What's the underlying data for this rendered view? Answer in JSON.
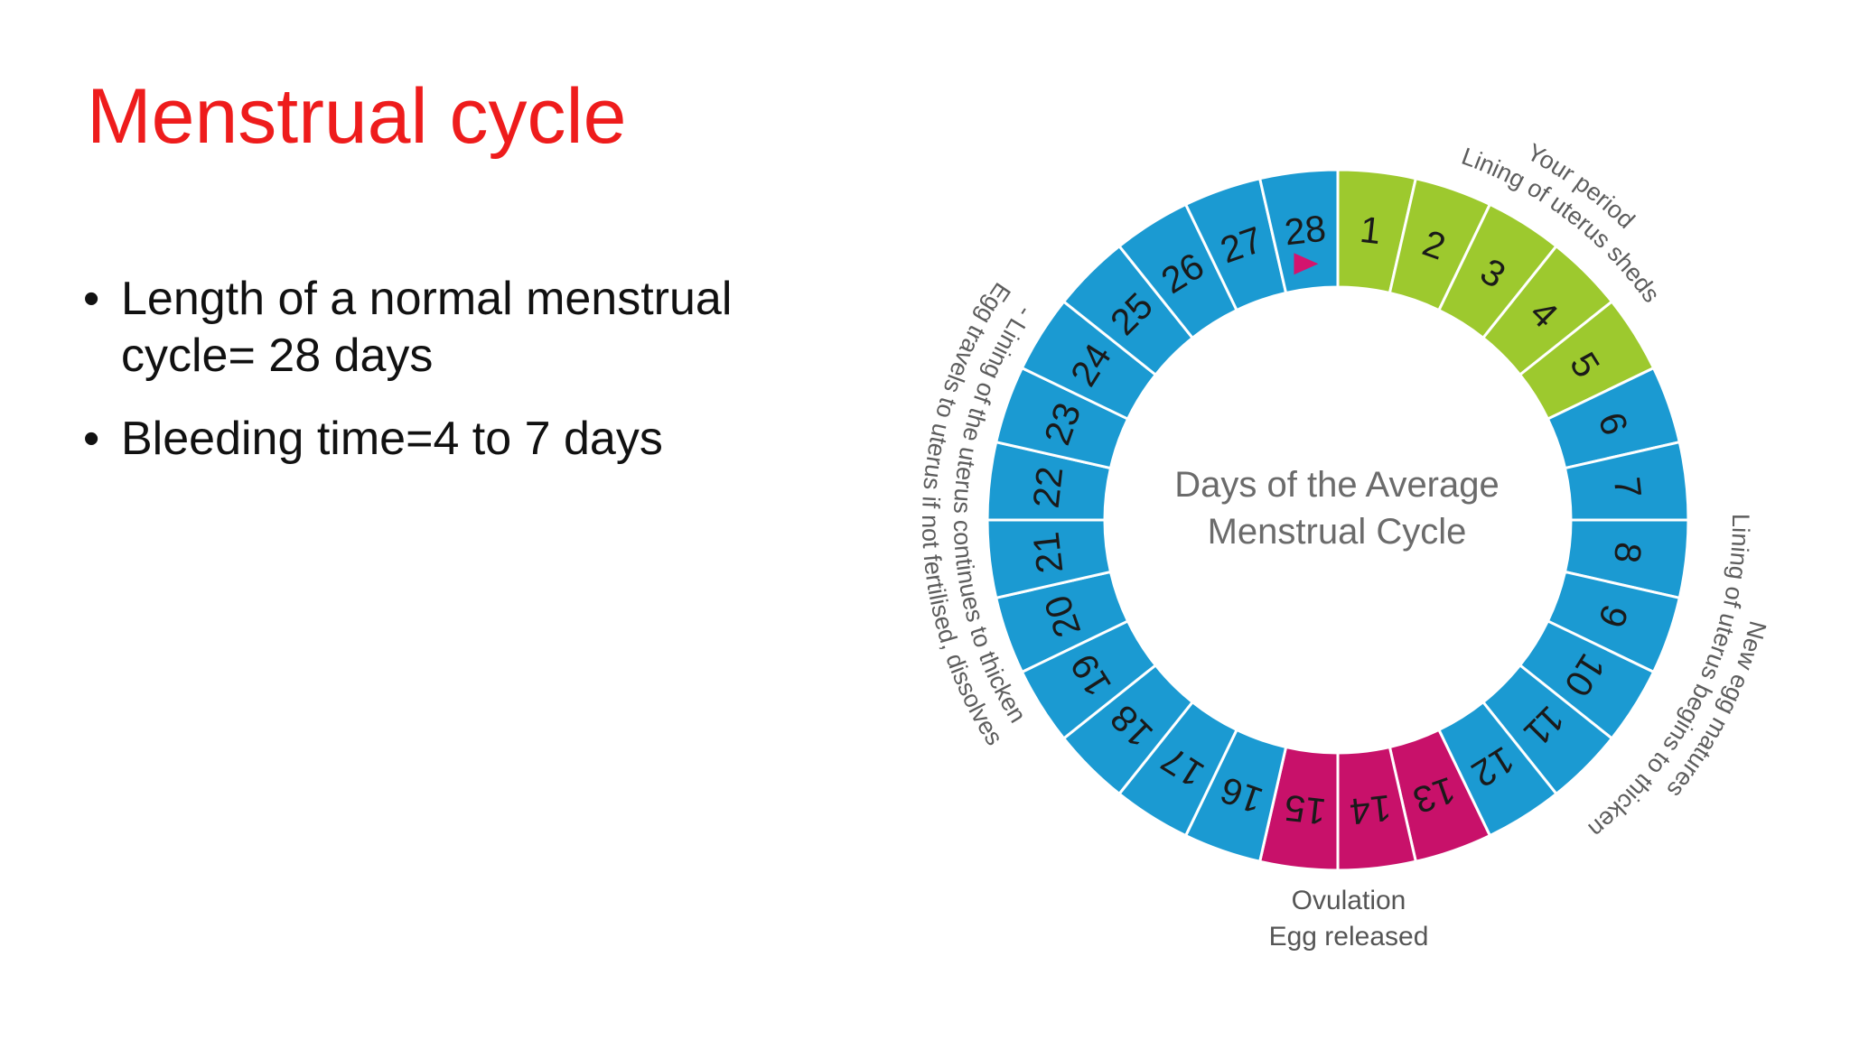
{
  "slide": {
    "title": "Menstrual cycle",
    "bullets": [
      "Length of a normal menstrual cycle= 28 days",
      "Bleeding time=4 to 7 days"
    ]
  },
  "diagram": {
    "center_title": [
      "Days of the Average",
      "Menstrual Cycle"
    ],
    "days": [
      {
        "n": "1",
        "phase": "period"
      },
      {
        "n": "2",
        "phase": "period"
      },
      {
        "n": "3",
        "phase": "period"
      },
      {
        "n": "4",
        "phase": "period"
      },
      {
        "n": "5",
        "phase": "period"
      },
      {
        "n": "6",
        "phase": "cycle"
      },
      {
        "n": "7",
        "phase": "cycle"
      },
      {
        "n": "8",
        "phase": "cycle"
      },
      {
        "n": "9",
        "phase": "cycle"
      },
      {
        "n": "10",
        "phase": "cycle"
      },
      {
        "n": "11",
        "phase": "cycle"
      },
      {
        "n": "12",
        "phase": "cycle"
      },
      {
        "n": "13",
        "phase": "ovulation"
      },
      {
        "n": "14",
        "phase": "ovulation"
      },
      {
        "n": "15",
        "phase": "ovulation"
      },
      {
        "n": "16",
        "phase": "cycle"
      },
      {
        "n": "17",
        "phase": "cycle"
      },
      {
        "n": "18",
        "phase": "cycle"
      },
      {
        "n": "19",
        "phase": "cycle"
      },
      {
        "n": "20",
        "phase": "cycle"
      },
      {
        "n": "21",
        "phase": "cycle"
      },
      {
        "n": "22",
        "phase": "cycle"
      },
      {
        "n": "23",
        "phase": "cycle"
      },
      {
        "n": "24",
        "phase": "cycle"
      },
      {
        "n": "25",
        "phase": "cycle"
      },
      {
        "n": "26",
        "phase": "cycle"
      },
      {
        "n": "27",
        "phase": "cycle"
      },
      {
        "n": "28",
        "phase": "cycle"
      }
    ],
    "phase_colors": {
      "period": "#9dc92e",
      "cycle": "#1b9ad2",
      "ovulation": "#c8116a"
    },
    "marker_color": "#d4146e",
    "marker_icon": "triangle-pointer",
    "arc_labels": {
      "period_1": "Your period",
      "period_2": "Lining of uterus sheds",
      "follicular_1": "New egg matures",
      "follicular_2": "Lining of uterus begins to thicken",
      "luteal_1": "Egg travels to uterus if not fertilised, dissolves",
      "luteal_2": "- Lining of the uterus continues to thicken"
    },
    "ovulation_label": [
      "Ovulation",
      "Egg released"
    ]
  },
  "colors": {
    "title": "#ee1c1c",
    "body_text": "#111111",
    "segment_border": "#ffffff"
  }
}
